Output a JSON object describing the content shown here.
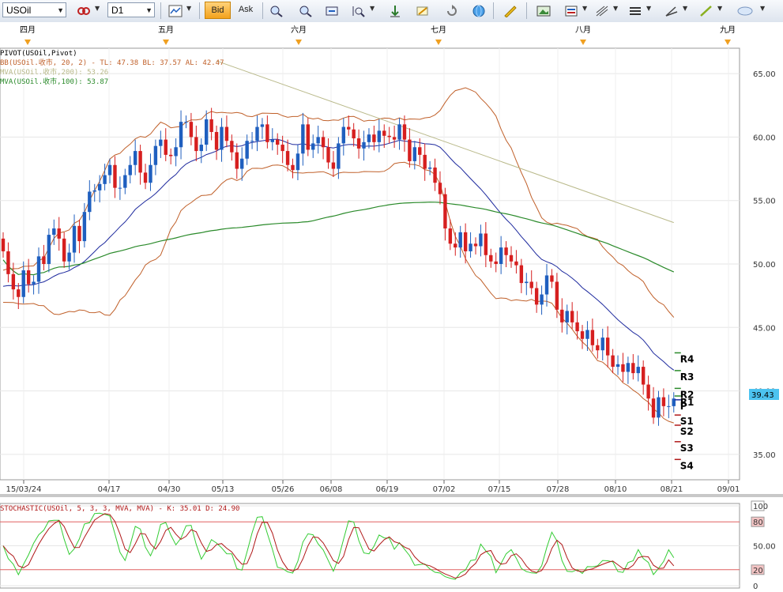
{
  "toolbar": {
    "symbol": "USOil",
    "timeframe": "D1",
    "bid_label": "Bid",
    "ask_label": "Ask",
    "icons": [
      "link-icon",
      "bar-chart-icon",
      "zoom-in-icon",
      "zoom-out-icon",
      "fit-icon",
      "zoom-select-icon",
      "scroll-end-icon",
      "screenshot-icon",
      "refresh-icon",
      "globe-icon",
      "ruler-icon",
      "image-icon",
      "template-icon",
      "fibonacci-icon",
      "lines-icon",
      "trend-icon",
      "pen-icon",
      "ellipse-icon"
    ]
  },
  "colors": {
    "bull": "#1f5fbf",
    "bear": "#d61f1f",
    "bb": "#c0602a",
    "ma20": "#1e2a9e",
    "ma100": "#2a8a2a",
    "trendline": "#b9b98a",
    "stoch_k": "#33cc33",
    "stoch_d": "#b01818",
    "last_price_bg": "#4cc3f0"
  },
  "month_labels": [
    "四月",
    "五月",
    "六月",
    "七月",
    "八月",
    "九月"
  ],
  "legend": {
    "pivot": "PIVOT(USOil,Pivot)",
    "bb": "BB(USOil.收市, 20, 2) -  TL: 47.38  BL: 37.57  AL: 42.47",
    "mva200": "MVA(USOil.收市,200): 53.26",
    "mva100": "MVA(USOil.收市,100): 53.87"
  },
  "stoch_legend": "STOCHASTIC(USOil, 5, 3, 3, MVA, MVA) -  K: 35.01  D: 24.90",
  "pivot_levels": [
    {
      "label": "R4",
      "value": 43.0
    },
    {
      "label": "R3",
      "value": 41.6
    },
    {
      "label": "R2",
      "value": 40.2
    },
    {
      "label": "R1",
      "value": 39.6
    },
    {
      "label": "P",
      "value": 39.3
    },
    {
      "label": "S1",
      "value": 38.1
    },
    {
      "label": "S2",
      "value": 37.3
    },
    {
      "label": "S3",
      "value": 36.0
    },
    {
      "label": "S4",
      "value": 34.6
    }
  ],
  "last_price": "39.43",
  "chart_data": [
    {
      "type": "candlestick",
      "title": "",
      "x_tick_labels": [
        "15/03/24",
        "04/17",
        "04/30",
        "05/13",
        "05/26",
        "06/08",
        "06/19",
        "07/02",
        "07/15",
        "07/28",
        "08/10",
        "08/21",
        "09/01"
      ],
      "y_tick_labels": [
        "65.00",
        "60.00",
        "55.00",
        "50.00",
        "45.00",
        "40.00",
        "35.00"
      ],
      "ylim": [
        33.0,
        67.0
      ],
      "grid": true,
      "closes": [
        51.0,
        49.2,
        48.0,
        47.4,
        49.5,
        48.4,
        48.6,
        50.6,
        50.0,
        52.3,
        52.8,
        52.0,
        50.2,
        50.9,
        53.0,
        51.8,
        54.1,
        55.7,
        55.8,
        56.3,
        57.0,
        57.8,
        56.0,
        56.0,
        57.0,
        57.8,
        58.9,
        57.2,
        56.4,
        57.8,
        59.3,
        59.8,
        58.6,
        58.5,
        59.2,
        61.2,
        61.2,
        60.0,
        58.9,
        59.4,
        61.4,
        60.4,
        59.0,
        60.8,
        59.7,
        58.8,
        57.5,
        58.3,
        59.7,
        59.7,
        60.8,
        61.0,
        59.6,
        59.8,
        59.4,
        58.9,
        57.8,
        57.4,
        58.7,
        61.0,
        59.0,
        59.5,
        60.0,
        59.2,
        58.0,
        57.5,
        59.5,
        60.8,
        60.6,
        59.9,
        59.1,
        59.6,
        60.2,
        59.6,
        60.5,
        60.1,
        60.0,
        59.8,
        61.0,
        59.8,
        58.1,
        59.2,
        58.6,
        57.5,
        57.6,
        56.4,
        55.5,
        52.8,
        51.6,
        51.3,
        52.5,
        51.0,
        51.6,
        51.4,
        52.4,
        50.7,
        50.2,
        50.0,
        51.3,
        50.7,
        50.2,
        49.9,
        48.5,
        48.6,
        48.1,
        46.8,
        47.6,
        49.1,
        48.6,
        46.4,
        45.4,
        46.3,
        45.4,
        44.7,
        44.1,
        44.8,
        43.6,
        43.2,
        44.2,
        42.8,
        41.9,
        42.1,
        41.5,
        42.2,
        41.4,
        41.9,
        40.5,
        39.4,
        37.9,
        39.5,
        38.8,
        38.8,
        39.4
      ],
      "bb_mid_start": 48.1,
      "series": [
        {
          "name": "BB(USOil.收市, 20, 2)",
          "values": [
            "TL 47.38",
            "BL 37.57",
            "AL 42.47"
          ]
        },
        {
          "name": "MVA(USOil.收市,200)",
          "values": [
            53.26
          ]
        },
        {
          "name": "MVA(USOil.收市,100)",
          "values": [
            53.87
          ]
        }
      ]
    },
    {
      "type": "line",
      "title": "",
      "y_tick_labels": [
        "100",
        "80",
        "50.00",
        "20",
        "0"
      ],
      "ylim": [
        0,
        100
      ],
      "reference_lines": [
        80,
        20
      ],
      "series": [
        {
          "name": "K",
          "last": 35.01
        },
        {
          "name": "D",
          "last": 24.9
        }
      ]
    }
  ]
}
